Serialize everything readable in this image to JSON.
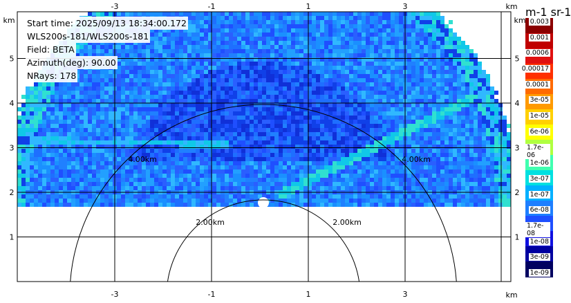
{
  "info": {
    "start_time": "Start time: 2025/09/13 18:34:00.172",
    "instrument": "WLS200s-181/WLS200s-181",
    "field": "Field: BETA",
    "azimuth": "Azimuth(deg): 90.00",
    "nrays": "NRays: 178"
  },
  "axes": {
    "x_unit": "km",
    "y_unit": "km",
    "x_ticks_top": [
      "-3",
      "-1",
      "1",
      "3"
    ],
    "x_ticks_bottom": [
      "-3",
      "-1",
      "1",
      "3"
    ],
    "y_ticks_left": [
      "5",
      "4",
      "3",
      "2",
      "1"
    ],
    "y_ticks_right": [
      "5",
      "4",
      "3",
      "2",
      "1"
    ]
  },
  "range_rings": {
    "labels": [
      "2.00km",
      "2.00km",
      "4.00km",
      "4.00km"
    ]
  },
  "colorbar": {
    "title": "m-1 sr-1",
    "labels": [
      "0.003",
      "0.001",
      "0.0006",
      "0.00017",
      "0.0001",
      "3e-05",
      "1e-05",
      "6e-06",
      "1.7e-06",
      "1e-06",
      "3e-07",
      "1e-07",
      "6e-08",
      "1.7e-08",
      "1e-08",
      "3e-09",
      "1e-09"
    ],
    "colors": [
      "#8b0000",
      "#c00000",
      "#e01010",
      "#ff3000",
      "#ff6a00",
      "#ff9a00",
      "#ffd000",
      "#ffff00",
      "#b0ff40",
      "#40ffb0",
      "#00e0e0",
      "#00b0ff",
      "#1e7fff",
      "#1f4fff",
      "#1010e0",
      "#0000a0",
      "#000060"
    ]
  }
}
